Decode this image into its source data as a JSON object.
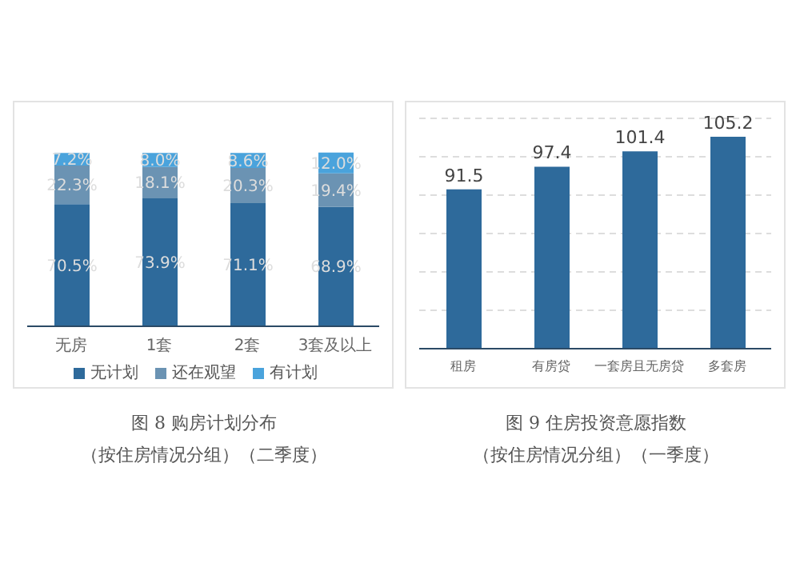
{
  "chart_data": [
    {
      "type": "bar",
      "title": "图 8 购房计划分布",
      "subtitle": "（按住房情况分组）（二季度）",
      "categories": [
        "无房",
        "1套",
        "2套",
        "3套及以上"
      ],
      "stacked": true,
      "legend": "bottom",
      "series": [
        {
          "name": "无计划",
          "color": "#2e6a9b",
          "values": [
            70.5,
            73.9,
            71.1,
            68.9
          ],
          "value_labels": [
            "70.5%",
            "73.9%",
            "71.1%",
            "68.9%"
          ]
        },
        {
          "name": "还在观望",
          "color": "#6b93b3",
          "values": [
            22.3,
            18.1,
            20.3,
            19.4
          ],
          "value_labels": [
            "22.3%",
            "18.1%",
            "20.3%",
            "19.4%"
          ]
        },
        {
          "name": "有计划",
          "color": "#4aa3dc",
          "values": [
            7.2,
            8.0,
            8.6,
            12.0
          ],
          "value_labels": [
            "7.2%",
            "8.0%",
            "8.6%",
            "12.0%"
          ]
        }
      ]
    },
    {
      "type": "bar",
      "title": "图 9 住房投资意愿指数",
      "subtitle": "（按住房情况分组）（一季度）",
      "categories": [
        "租房",
        "有房贷",
        "一套房且无房贷",
        "多套房"
      ],
      "values": [
        91.5,
        97.4,
        101.4,
        105.2
      ],
      "color": "#2e6a9b",
      "data_labels": true,
      "grid": "y",
      "ylim": [
        50,
        110
      ],
      "yticks": [
        {
          "value": 50,
          "label": null
        },
        {
          "value": 60,
          "label": null
        },
        {
          "value": 70,
          "label": null
        },
        {
          "value": 80,
          "label": null
        },
        {
          "value": 90,
          "label": null
        },
        {
          "value": 100,
          "label": null
        },
        {
          "value": 110,
          "label": null
        }
      ],
      "tick_labels": "x"
    }
  ]
}
